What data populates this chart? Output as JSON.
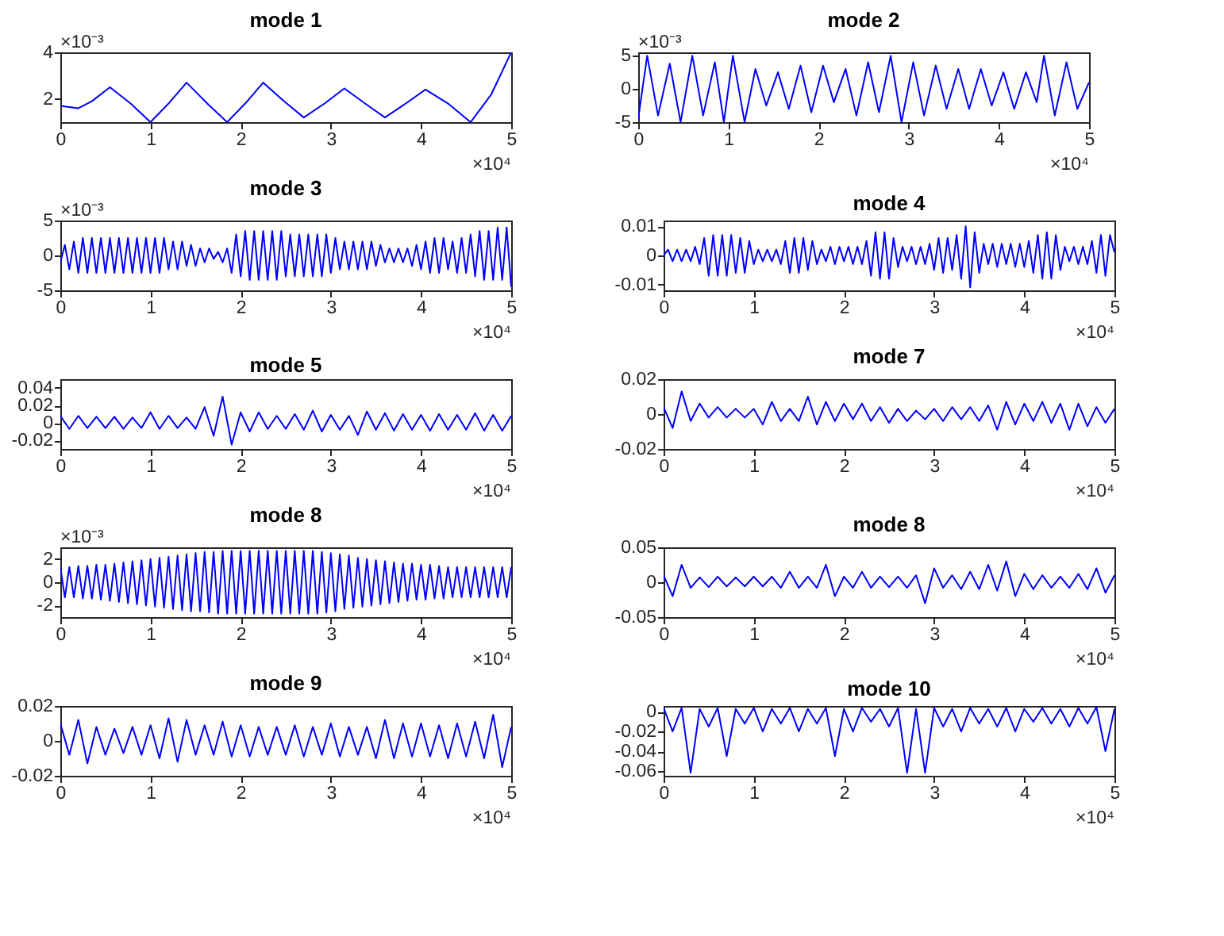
{
  "chart_data": [
    {
      "type": "line",
      "title": "mode 1",
      "annotations": [
        "×10⁴",
        "×10⁻³"
      ],
      "xlim": [
        0,
        5
      ],
      "xticks": [
        0,
        1,
        2,
        3,
        4,
        5
      ],
      "ylim": [
        1,
        4
      ],
      "yticks": [
        2,
        4
      ],
      "x": [
        0,
        0.1,
        0.2,
        0.35,
        0.55,
        0.78,
        1.0,
        1.2,
        1.4,
        1.63,
        1.85,
        2.05,
        2.25,
        2.48,
        2.7,
        2.93,
        3.15,
        3.38,
        3.6,
        3.83,
        4.05,
        4.3,
        4.55,
        4.78,
        5.0
      ],
      "series": [
        {
          "color": "#0000ff",
          "values": [
            1.7,
            1.65,
            1.6,
            1.9,
            2.5,
            1.8,
            1.0,
            1.8,
            2.7,
            1.8,
            1.0,
            1.8,
            2.7,
            1.9,
            1.2,
            1.8,
            2.45,
            1.8,
            1.2,
            1.8,
            2.4,
            1.8,
            1.0,
            2.2,
            4.0
          ]
        }
      ]
    },
    {
      "type": "line",
      "title": "mode 2",
      "annotations": [
        "×10⁴",
        "×10⁻³"
      ],
      "xlim": [
        0,
        5
      ],
      "xticks": [
        0,
        1,
        2,
        3,
        4,
        5
      ],
      "ylim": [
        -5,
        5.5
      ],
      "yticks": [
        -5,
        0,
        5
      ],
      "x": [
        0,
        0.1,
        0.22,
        0.35,
        0.47,
        0.6,
        0.72,
        0.85,
        0.95,
        1.05,
        1.18,
        1.3,
        1.42,
        1.55,
        1.67,
        1.8,
        1.92,
        2.05,
        2.17,
        2.3,
        2.42,
        2.55,
        2.67,
        2.8,
        2.92,
        3.05,
        3.17,
        3.3,
        3.42,
        3.55,
        3.67,
        3.8,
        3.92,
        4.05,
        4.17,
        4.3,
        4.42,
        4.5,
        4.62,
        4.75,
        4.87,
        5.0
      ],
      "series": [
        {
          "color": "#0000ff",
          "values": [
            -4.5,
            5,
            -4,
            3.8,
            -5,
            5,
            -4,
            4,
            -5,
            5,
            -5,
            3,
            -2.5,
            2.5,
            -3,
            3.5,
            -3.5,
            3.5,
            -2,
            3,
            -4,
            4,
            -3.5,
            5,
            -5,
            4,
            -4,
            3.5,
            -3,
            3,
            -3,
            3,
            -2.5,
            2.5,
            -3,
            2.5,
            -2,
            5,
            -4,
            4,
            -3,
            1
          ]
        }
      ]
    },
    {
      "type": "line",
      "title": "mode 3",
      "annotations": [
        "×10⁴",
        "×10⁻³"
      ],
      "xlim": [
        0,
        5
      ],
      "xticks": [
        0,
        1,
        2,
        3,
        4,
        5
      ],
      "ylim": [
        -5,
        5
      ],
      "yticks": [
        -5,
        0,
        5
      ],
      "x": [
        0,
        0.05,
        0.1,
        0.15,
        0.2,
        0.25,
        0.3,
        0.35,
        0.4,
        0.45,
        0.5,
        0.55,
        0.6,
        0.65,
        0.7,
        0.75,
        0.8,
        0.85,
        0.9,
        0.95,
        1,
        1.05,
        1.1,
        1.15,
        1.2,
        1.25,
        1.3,
        1.35,
        1.4,
        1.45,
        1.5,
        1.55,
        1.6,
        1.65,
        1.7,
        1.75,
        1.8,
        1.85,
        1.9,
        1.95,
        2,
        2.05,
        2.1,
        2.15,
        2.2,
        2.25,
        2.3,
        2.35,
        2.4,
        2.45,
        2.5,
        2.55,
        2.6,
        2.65,
        2.7,
        2.75,
        2.8,
        2.85,
        2.9,
        2.95,
        3,
        3.05,
        3.1,
        3.15,
        3.2,
        3.25,
        3.3,
        3.35,
        3.4,
        3.45,
        3.5,
        3.55,
        3.6,
        3.65,
        3.7,
        3.75,
        3.8,
        3.85,
        3.9,
        3.95,
        4,
        4.05,
        4.1,
        4.15,
        4.2,
        4.25,
        4.3,
        4.35,
        4.4,
        4.45,
        4.5,
        4.55,
        4.6,
        4.65,
        4.7,
        4.75,
        4.8,
        4.85,
        4.9,
        4.95,
        5
      ],
      "series": [
        {
          "color": "#0000ff",
          "values": [
            -1,
            1.5,
            -2,
            2,
            -2.5,
            2.5,
            -2.5,
            2.5,
            -2.5,
            2.5,
            -2.5,
            2.5,
            -2.5,
            2.5,
            -2.5,
            2.5,
            -2.5,
            2.5,
            -2.5,
            2.5,
            -2.5,
            2.5,
            -2.5,
            2.5,
            -2,
            2,
            -2,
            2,
            -1.5,
            1.5,
            -1.5,
            1,
            -1,
            1,
            -0.5,
            0.5,
            -1,
            1,
            -2.5,
            3,
            -3,
            3.5,
            -3.5,
            3.5,
            -3.5,
            3.5,
            -3.5,
            3.5,
            -3.5,
            3.5,
            -3,
            3,
            -3,
            3,
            -3,
            3,
            -3,
            3,
            -3,
            3,
            -2.5,
            2.5,
            -2,
            2,
            -2,
            2,
            -2,
            2,
            -2,
            2,
            -1.5,
            1.5,
            -1,
            1,
            -1,
            1,
            -1,
            1,
            -1.5,
            1.5,
            -2,
            2,
            -2.5,
            2.5,
            -2.5,
            2.5,
            -2,
            2,
            -2.5,
            2.5,
            -2.5,
            3,
            -3,
            3.5,
            -3.5,
            3.5,
            -3.5,
            4,
            -3.5,
            4,
            -4.5
          ]
        }
      ]
    },
    {
      "type": "line",
      "title": "mode 4",
      "annotations": [
        "×10⁴"
      ],
      "xlim": [
        0,
        5
      ],
      "xticks": [
        0,
        1,
        2,
        3,
        4,
        5
      ],
      "ylim": [
        -0.012,
        0.012
      ],
      "yticks": [
        -0.01,
        0,
        0.01
      ],
      "x": [
        0,
        0.05,
        0.1,
        0.15,
        0.2,
        0.25,
        0.3,
        0.35,
        0.4,
        0.45,
        0.5,
        0.55,
        0.6,
        0.65,
        0.7,
        0.75,
        0.8,
        0.85,
        0.9,
        0.95,
        1,
        1.05,
        1.1,
        1.15,
        1.2,
        1.25,
        1.3,
        1.35,
        1.4,
        1.45,
        1.5,
        1.55,
        1.6,
        1.65,
        1.7,
        1.75,
        1.8,
        1.85,
        1.9,
        1.95,
        2,
        2.05,
        2.1,
        2.15,
        2.2,
        2.25,
        2.3,
        2.35,
        2.4,
        2.45,
        2.5,
        2.55,
        2.6,
        2.65,
        2.7,
        2.75,
        2.8,
        2.85,
        2.9,
        2.95,
        3,
        3.05,
        3.1,
        3.15,
        3.2,
        3.25,
        3.3,
        3.35,
        3.4,
        3.45,
        3.5,
        3.55,
        3.6,
        3.65,
        3.7,
        3.75,
        3.8,
        3.85,
        3.9,
        3.95,
        4,
        4.05,
        4.1,
        4.15,
        4.2,
        4.25,
        4.3,
        4.35,
        4.4,
        4.45,
        4.5,
        4.55,
        4.6,
        4.65,
        4.7,
        4.75,
        4.8,
        4.85,
        4.9,
        4.95,
        5
      ],
      "series": [
        {
          "color": "#0000ff",
          "values": [
            0,
            0.002,
            -0.002,
            0.002,
            -0.002,
            0.002,
            -0.002,
            0.003,
            -0.003,
            0.006,
            -0.007,
            0.007,
            -0.007,
            0.007,
            -0.007,
            0.007,
            -0.006,
            0.006,
            -0.006,
            0.005,
            -0.003,
            0.002,
            -0.002,
            0.002,
            -0.002,
            0.002,
            -0.003,
            0.005,
            -0.006,
            0.006,
            -0.006,
            0.006,
            -0.005,
            0.005,
            -0.003,
            0.002,
            -0.002,
            0.003,
            -0.003,
            0.003,
            -0.002,
            0.003,
            -0.003,
            0.003,
            -0.003,
            0.005,
            -0.007,
            0.008,
            -0.008,
            0.008,
            -0.008,
            0.006,
            -0.004,
            0.003,
            -0.002,
            0.003,
            -0.003,
            0.003,
            -0.003,
            0.004,
            -0.005,
            0.006,
            -0.006,
            0.006,
            -0.005,
            0.007,
            -0.008,
            0.01,
            -0.011,
            0.008,
            -0.006,
            0.004,
            -0.003,
            0.004,
            -0.004,
            0.004,
            -0.003,
            0.004,
            -0.004,
            0.004,
            -0.004,
            0.005,
            -0.006,
            0.007,
            -0.008,
            0.008,
            -0.008,
            0.007,
            -0.005,
            0.003,
            -0.002,
            0.003,
            -0.003,
            0.003,
            -0.003,
            0.005,
            -0.006,
            0.007,
            -0.007,
            0.007,
            0.001
          ]
        }
      ]
    },
    {
      "type": "line",
      "title": "mode 5",
      "annotations": [
        "×10⁴"
      ],
      "xlim": [
        0,
        5
      ],
      "xticks": [
        0,
        1,
        2,
        3,
        4,
        5
      ],
      "ylim": [
        -0.03,
        0.05
      ],
      "yticks": [
        -0.02,
        0,
        0.02,
        0.04
      ],
      "x": [
        0,
        0.1,
        0.2,
        0.3,
        0.4,
        0.5,
        0.6,
        0.7,
        0.8,
        0.9,
        1,
        1.1,
        1.2,
        1.3,
        1.4,
        1.5,
        1.6,
        1.7,
        1.8,
        1.9,
        2,
        2.1,
        2.2,
        2.3,
        2.4,
        2.5,
        2.6,
        2.7,
        2.8,
        2.9,
        3,
        3.1,
        3.2,
        3.3,
        3.4,
        3.5,
        3.6,
        3.7,
        3.8,
        3.9,
        4,
        4.1,
        4.2,
        4.3,
        4.4,
        4.5,
        4.6,
        4.7,
        4.8,
        4.9,
        5
      ],
      "series": [
        {
          "color": "#0000ff",
          "values": [
            0.008,
            -0.007,
            0.008,
            -0.006,
            0.007,
            -0.006,
            0.007,
            -0.007,
            0.006,
            -0.006,
            0.012,
            -0.007,
            0.008,
            -0.006,
            0.006,
            -0.007,
            0.018,
            -0.015,
            0.03,
            -0.025,
            0.012,
            -0.01,
            0.012,
            -0.007,
            0.008,
            -0.007,
            0.01,
            -0.008,
            0.014,
            -0.01,
            0.009,
            -0.008,
            0.008,
            -0.014,
            0.013,
            -0.008,
            0.011,
            -0.009,
            0.01,
            -0.008,
            0.009,
            -0.009,
            0.01,
            -0.008,
            0.009,
            -0.008,
            0.011,
            -0.009,
            0.009,
            -0.009,
            0.008
          ]
        }
      ]
    },
    {
      "type": "line",
      "title": "mode 7",
      "annotations": [
        "×10⁴"
      ],
      "xlim": [
        0,
        5
      ],
      "xticks": [
        0,
        1,
        2,
        3,
        4,
        5
      ],
      "ylim": [
        -0.02,
        0.02
      ],
      "yticks": [
        -0.02,
        0,
        0.02
      ],
      "x": [
        0,
        0.1,
        0.2,
        0.3,
        0.4,
        0.5,
        0.6,
        0.7,
        0.8,
        0.9,
        1,
        1.1,
        1.2,
        1.3,
        1.4,
        1.5,
        1.6,
        1.7,
        1.8,
        1.9,
        2,
        2.1,
        2.2,
        2.3,
        2.4,
        2.5,
        2.6,
        2.7,
        2.8,
        2.9,
        3,
        3.1,
        3.2,
        3.3,
        3.4,
        3.5,
        3.6,
        3.7,
        3.8,
        3.9,
        4,
        4.1,
        4.2,
        4.3,
        4.4,
        4.5,
        4.6,
        4.7,
        4.8,
        4.9,
        5
      ],
      "series": [
        {
          "color": "#0000ff",
          "values": [
            0.004,
            -0.008,
            0.013,
            -0.004,
            0.006,
            -0.002,
            0.004,
            -0.002,
            0.003,
            -0.002,
            0.003,
            -0.006,
            0.007,
            -0.004,
            0.003,
            -0.004,
            0.01,
            -0.006,
            0.007,
            -0.004,
            0.006,
            -0.003,
            0.006,
            -0.004,
            0.004,
            -0.005,
            0.003,
            -0.004,
            0.002,
            -0.003,
            0.003,
            -0.004,
            0.004,
            -0.003,
            0.004,
            -0.004,
            0.005,
            -0.009,
            0.007,
            -0.006,
            0.006,
            -0.004,
            0.007,
            -0.005,
            0.006,
            -0.009,
            0.006,
            -0.007,
            0.004,
            -0.005,
            0.003
          ]
        }
      ]
    },
    {
      "type": "line",
      "title": "mode 8",
      "annotations": [
        "×10⁴",
        "×10⁻³"
      ],
      "xlim": [
        0,
        5
      ],
      "xticks": [
        0,
        1,
        2,
        3,
        4,
        5
      ],
      "ylim": [
        -3,
        3
      ],
      "yticks": [
        -2,
        0,
        2
      ],
      "x": [
        0,
        0.05,
        0.1,
        0.15,
        0.2,
        0.25,
        0.3,
        0.35,
        0.4,
        0.45,
        0.5,
        0.55,
        0.6,
        0.65,
        0.7,
        0.75,
        0.8,
        0.85,
        0.9,
        0.95,
        1,
        1.05,
        1.1,
        1.15,
        1.2,
        1.25,
        1.3,
        1.35,
        1.4,
        1.45,
        1.5,
        1.55,
        1.6,
        1.65,
        1.7,
        1.75,
        1.8,
        1.85,
        1.9,
        1.95,
        2,
        2.05,
        2.1,
        2.15,
        2.2,
        2.25,
        2.3,
        2.35,
        2.4,
        2.45,
        2.5,
        2.55,
        2.6,
        2.65,
        2.7,
        2.75,
        2.8,
        2.85,
        2.9,
        2.95,
        3,
        3.05,
        3.1,
        3.15,
        3.2,
        3.25,
        3.3,
        3.35,
        3.4,
        3.45,
        3.5,
        3.55,
        3.6,
        3.65,
        3.7,
        3.75,
        3.8,
        3.85,
        3.9,
        3.95,
        4,
        4.05,
        4.1,
        4.15,
        4.2,
        4.25,
        4.3,
        4.35,
        4.4,
        4.45,
        4.5,
        4.55,
        4.6,
        4.65,
        4.7,
        4.75,
        4.8,
        4.85,
        4.9,
        4.95,
        5
      ],
      "series": [
        {
          "color": "#0000ff",
          "values": [
            1.3,
            -1.3,
            1.3,
            -1.3,
            1.4,
            -1.4,
            1.4,
            -1.4,
            1.5,
            -1.5,
            1.5,
            -1.6,
            1.6,
            -1.7,
            1.7,
            -1.8,
            1.8,
            -1.9,
            1.9,
            -2.0,
            2.0,
            -2.1,
            2.1,
            -2.2,
            2.2,
            -2.3,
            2.3,
            -2.4,
            2.4,
            -2.5,
            2.5,
            -2.5,
            2.6,
            -2.6,
            2.6,
            -2.7,
            2.7,
            -2.7,
            2.7,
            -2.7,
            2.7,
            -2.7,
            2.7,
            -2.7,
            2.7,
            -2.7,
            2.7,
            -2.7,
            2.7,
            -2.7,
            2.7,
            -2.7,
            2.7,
            -2.7,
            2.7,
            -2.7,
            2.7,
            -2.7,
            2.6,
            -2.6,
            2.5,
            -2.5,
            2.4,
            -2.3,
            2.3,
            -2.2,
            2.1,
            -2.1,
            2.0,
            -2.0,
            1.9,
            -1.9,
            1.8,
            -1.8,
            1.7,
            -1.7,
            1.6,
            -1.6,
            1.6,
            -1.5,
            1.5,
            -1.5,
            1.5,
            -1.4,
            1.4,
            -1.4,
            1.3,
            -1.3,
            1.3,
            -1.3,
            1.3,
            -1.3,
            1.3,
            -1.3,
            1.3,
            -1.3,
            1.3,
            -1.3,
            1.3,
            -1.3,
            1.3
          ]
        }
      ]
    },
    {
      "type": "line",
      "title": "mode 8",
      "annotations": [
        "×10⁴"
      ],
      "xlim": [
        0,
        5
      ],
      "xticks": [
        0,
        1,
        2,
        3,
        4,
        5
      ],
      "ylim": [
        -0.05,
        0.05
      ],
      "yticks": [
        -0.05,
        0,
        0.05
      ],
      "x": [
        0,
        0.1,
        0.2,
        0.3,
        0.4,
        0.5,
        0.6,
        0.7,
        0.8,
        0.9,
        1,
        1.1,
        1.2,
        1.3,
        1.4,
        1.5,
        1.6,
        1.7,
        1.8,
        1.9,
        2,
        2.1,
        2.2,
        2.3,
        2.4,
        2.5,
        2.6,
        2.7,
        2.8,
        2.9,
        3,
        3.1,
        3.2,
        3.3,
        3.4,
        3.5,
        3.6,
        3.7,
        3.8,
        3.9,
        4,
        4.1,
        4.2,
        4.3,
        4.4,
        4.5,
        4.6,
        4.7,
        4.8,
        4.9,
        5
      ],
      "series": [
        {
          "color": "#0000ff",
          "values": [
            0.01,
            -0.02,
            0.025,
            -0.008,
            0.007,
            -0.007,
            0.008,
            -0.006,
            0.007,
            -0.006,
            0.008,
            -0.006,
            0.008,
            -0.008,
            0.015,
            -0.008,
            0.008,
            -0.008,
            0.025,
            -0.02,
            0.008,
            -0.008,
            0.015,
            -0.008,
            0.008,
            -0.007,
            0.008,
            -0.008,
            0.01,
            -0.03,
            0.02,
            -0.008,
            0.01,
            -0.01,
            0.015,
            -0.01,
            0.025,
            -0.012,
            0.03,
            -0.02,
            0.012,
            -0.01,
            0.01,
            -0.008,
            0.008,
            -0.008,
            0.012,
            -0.01,
            0.02,
            -0.015,
            0.01
          ]
        }
      ]
    },
    {
      "type": "line",
      "title": "mode 9",
      "annotations": [
        "×10⁴"
      ],
      "xlim": [
        0,
        5
      ],
      "xticks": [
        0,
        1,
        2,
        3,
        4,
        5
      ],
      "ylim": [
        -0.02,
        0.02
      ],
      "yticks": [
        -0.02,
        0,
        0.02
      ],
      "x": [
        0,
        0.1,
        0.2,
        0.3,
        0.4,
        0.5,
        0.6,
        0.7,
        0.8,
        0.9,
        1,
        1.1,
        1.2,
        1.3,
        1.4,
        1.5,
        1.6,
        1.7,
        1.8,
        1.9,
        2,
        2.1,
        2.2,
        2.3,
        2.4,
        2.5,
        2.6,
        2.7,
        2.8,
        2.9,
        3,
        3.1,
        3.2,
        3.3,
        3.4,
        3.5,
        3.6,
        3.7,
        3.8,
        3.9,
        4,
        4.1,
        4.2,
        4.3,
        4.4,
        4.5,
        4.6,
        4.7,
        4.8,
        4.9,
        5
      ],
      "series": [
        {
          "color": "#0000ff",
          "values": [
            0.01,
            -0.008,
            0.012,
            -0.013,
            0.008,
            -0.008,
            0.007,
            -0.007,
            0.008,
            -0.008,
            0.009,
            -0.01,
            0.013,
            -0.012,
            0.012,
            -0.008,
            0.009,
            -0.008,
            0.011,
            -0.009,
            0.009,
            -0.009,
            0.008,
            -0.008,
            0.008,
            -0.008,
            0.009,
            -0.009,
            0.008,
            -0.008,
            0.01,
            -0.009,
            0.008,
            -0.008,
            0.008,
            -0.01,
            0.012,
            -0.01,
            0.01,
            -0.009,
            0.01,
            -0.009,
            0.009,
            -0.01,
            0.01,
            -0.009,
            0.011,
            -0.01,
            0.015,
            -0.015,
            0.008
          ]
        }
      ]
    },
    {
      "type": "line",
      "title": "mode 10",
      "annotations": [
        "×10⁴"
      ],
      "xlim": [
        0,
        5
      ],
      "xticks": [
        0,
        1,
        2,
        3,
        4,
        5
      ],
      "ylim": [
        -0.065,
        0.006
      ],
      "yticks": [
        -0.06,
        -0.04,
        -0.02,
        0
      ],
      "x": [
        0,
        0.1,
        0.2,
        0.3,
        0.4,
        0.5,
        0.6,
        0.7,
        0.8,
        0.9,
        1,
        1.1,
        1.2,
        1.3,
        1.4,
        1.5,
        1.6,
        1.7,
        1.8,
        1.9,
        2,
        2.1,
        2.2,
        2.3,
        2.4,
        2.5,
        2.6,
        2.7,
        2.8,
        2.9,
        3,
        3.1,
        3.2,
        3.3,
        3.4,
        3.5,
        3.6,
        3.7,
        3.8,
        3.9,
        4,
        4.1,
        4.2,
        4.3,
        4.4,
        4.5,
        4.6,
        4.7,
        4.8,
        4.9,
        5
      ],
      "series": [
        {
          "color": "#0000ff",
          "values": [
            0.004,
            -0.02,
            0.004,
            -0.062,
            0.003,
            -0.015,
            0.004,
            -0.045,
            0.003,
            -0.012,
            0.004,
            -0.02,
            0.003,
            -0.012,
            0.004,
            -0.02,
            0.003,
            -0.012,
            0.004,
            -0.045,
            0.003,
            -0.02,
            0.004,
            -0.01,
            0.003,
            -0.015,
            0.004,
            -0.062,
            0.003,
            -0.062,
            0.004,
            -0.015,
            0.003,
            -0.02,
            0.004,
            -0.012,
            0.003,
            -0.015,
            0.004,
            -0.02,
            0.003,
            -0.01,
            0.004,
            -0.012,
            0.003,
            -0.015,
            0.004,
            -0.012,
            0.005,
            -0.04,
            0.003
          ]
        }
      ]
    }
  ]
}
